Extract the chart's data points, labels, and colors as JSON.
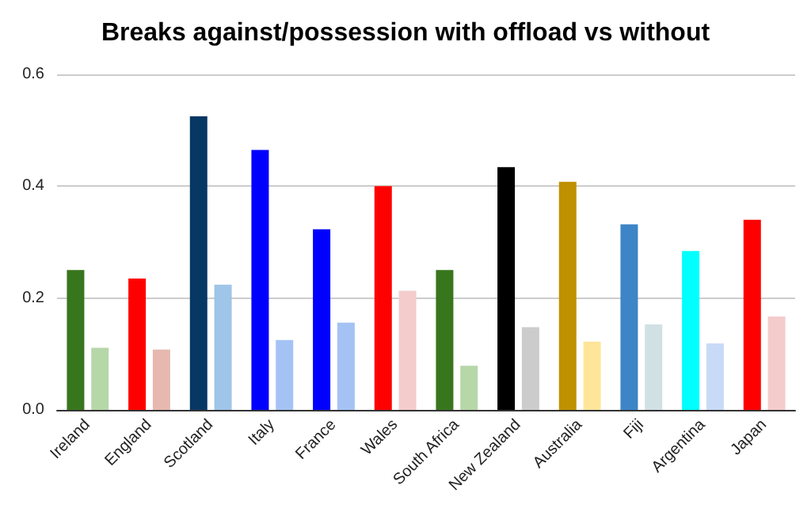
{
  "chart_data": {
    "type": "bar",
    "title": "Breaks against/possession with offload vs without",
    "categories": [
      "Ireland",
      "England",
      "Scotland",
      "Italy",
      "France",
      "Wales",
      "South Africa",
      "New Zealand",
      "Australia",
      "Fiji",
      "Argentina",
      "Japan"
    ],
    "series": [
      {
        "colors": [
          "#38761d",
          "#ff0000",
          "#073763",
          "#0000ff",
          "#0000ff",
          "#ff0000",
          "#38761d",
          "#000000",
          "#bf9000",
          "#3d85c6",
          "#00ffff",
          "#ff0000"
        ],
        "values": [
          0.25,
          0.235,
          0.525,
          0.465,
          0.323,
          0.4,
          0.25,
          0.434,
          0.408,
          0.332,
          0.284,
          0.34
        ]
      },
      {
        "colors": [
          "#b6d7a8",
          "#e6b8af",
          "#9fc5e8",
          "#a4c2f4",
          "#a4c2f4",
          "#f4cccc",
          "#b6d7a8",
          "#cccccc",
          "#ffe599",
          "#d0e0e3",
          "#c9daf8",
          "#f4cccc"
        ],
        "values": [
          0.111,
          0.108,
          0.224,
          0.125,
          0.156,
          0.213,
          0.079,
          0.148,
          0.122,
          0.153,
          0.119,
          0.167
        ]
      }
    ],
    "ylim": [
      0,
      0.6
    ],
    "yticks": [
      {
        "value": 0,
        "label": "0.0"
      },
      {
        "value": 0.2,
        "label": "0.2"
      },
      {
        "value": 0.4,
        "label": "0.4"
      },
      {
        "value": 0.6,
        "label": "0.6"
      }
    ],
    "grid": "y"
  }
}
